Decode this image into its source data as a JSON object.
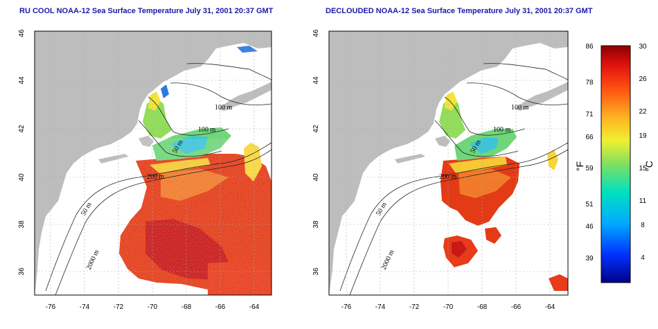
{
  "maps": [
    {
      "title": "RU COOL NOAA-12 Sea Surface Temperature July 31, 2001 20:37 GMT",
      "x_ticks": [
        "-76",
        "-74",
        "-72",
        "-70",
        "-68",
        "-66",
        "-64"
      ],
      "y_ticks": [
        "36",
        "38",
        "40",
        "42",
        "44",
        "46"
      ],
      "contour_labels": [
        "100 m",
        "100 m",
        "50 m",
        "200 m",
        "50 m",
        "2000 m"
      ]
    },
    {
      "title": "DECLOUDED NOAA-12 Sea Surface Temperature July 31, 2001 20:37 GMT",
      "x_ticks": [
        "-76",
        "-74",
        "-72",
        "-70",
        "-68",
        "-66",
        "-64"
      ],
      "y_ticks": [
        "36",
        "38",
        "40",
        "42",
        "44",
        "46"
      ],
      "contour_labels": [
        "100 m",
        "100 m",
        "50 m",
        "200 m",
        "50 m",
        "2000 m"
      ]
    }
  ],
  "colorbar": {
    "fahrenheit_label": "°F",
    "celsius_label": "°C",
    "fahrenheit_ticks": [
      "86",
      "78",
      "71",
      "66",
      "59",
      "51",
      "46",
      "39"
    ],
    "celsius_ticks": [
      "30",
      "26",
      "22",
      "19",
      "15",
      "11",
      "8",
      "4"
    ],
    "colors": {
      "land": "#bdbdbd",
      "warm": "#e03a12",
      "hot": "#c8141a",
      "mid": "#f7d33a",
      "cool": "#41d18a",
      "cold": "#2b7be0"
    }
  }
}
